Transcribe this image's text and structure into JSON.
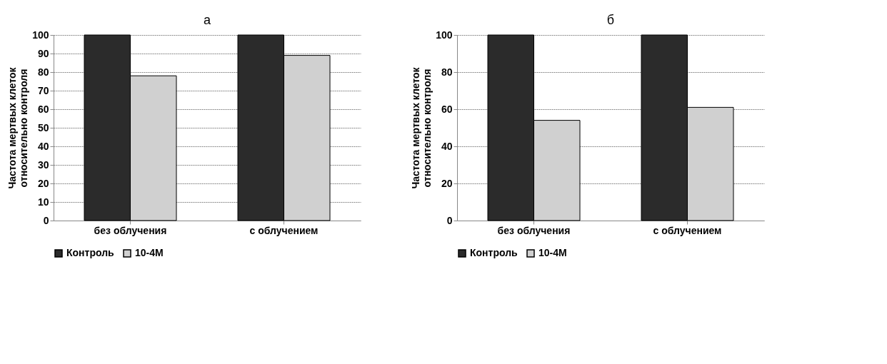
{
  "chart_data": [
    {
      "type": "bar",
      "title": "а",
      "ylabel": "Частота мертвых клеток\nотносительно контроля",
      "categories": [
        "без облучения",
        "с облучением"
      ],
      "series": [
        {
          "name": "Контроль",
          "color": "#2b2b2b",
          "values": [
            100,
            100
          ]
        },
        {
          "name": "10-4M",
          "color": "#d0d0d0",
          "values": [
            78,
            89
          ]
        }
      ],
      "ylim": [
        0,
        100
      ],
      "yticks": [
        0,
        10,
        20,
        30,
        40,
        50,
        60,
        70,
        80,
        90,
        100
      ],
      "grid": "y",
      "legend": "bottom"
    },
    {
      "type": "bar",
      "title": "б",
      "ylabel": "Частота мертвых клеток\nотносительно контроля",
      "categories": [
        "без облучения",
        "с облучением"
      ],
      "series": [
        {
          "name": "Контроль",
          "color": "#2b2b2b",
          "values": [
            100,
            100
          ]
        },
        {
          "name": "10-4M",
          "color": "#d0d0d0",
          "values": [
            54,
            61
          ]
        }
      ],
      "ylim": [
        0,
        100
      ],
      "yticks": [
        0,
        20,
        40,
        60,
        80,
        100
      ],
      "grid": "y",
      "legend": "bottom"
    }
  ]
}
